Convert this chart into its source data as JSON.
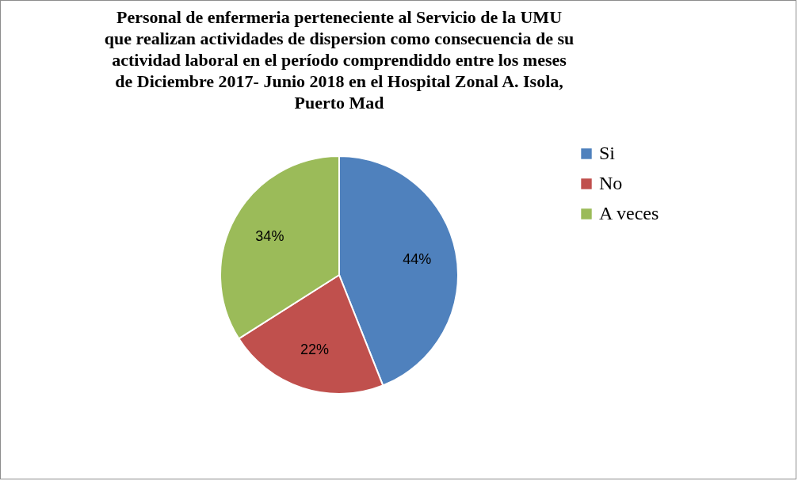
{
  "chart_data": {
    "type": "pie",
    "title": "Personal de enfermeria perteneciente al Servicio de la UMU\nque realizan actividades de dispersion como consecuencia de su\nactividad laboral en el período comprendiddo entre los meses\nde Diciembre 2017- Junio 2018 en el Hospital  Zonal A. Isola,\nPuerto Mad",
    "categories": [
      "Si",
      "No",
      "A veces"
    ],
    "values": [
      44,
      22,
      34
    ],
    "colors": [
      "#4f81bd",
      "#c0504d",
      "#9bbb59"
    ],
    "value_labels": [
      "44%",
      "22%",
      "34%"
    ],
    "legend": "right"
  }
}
